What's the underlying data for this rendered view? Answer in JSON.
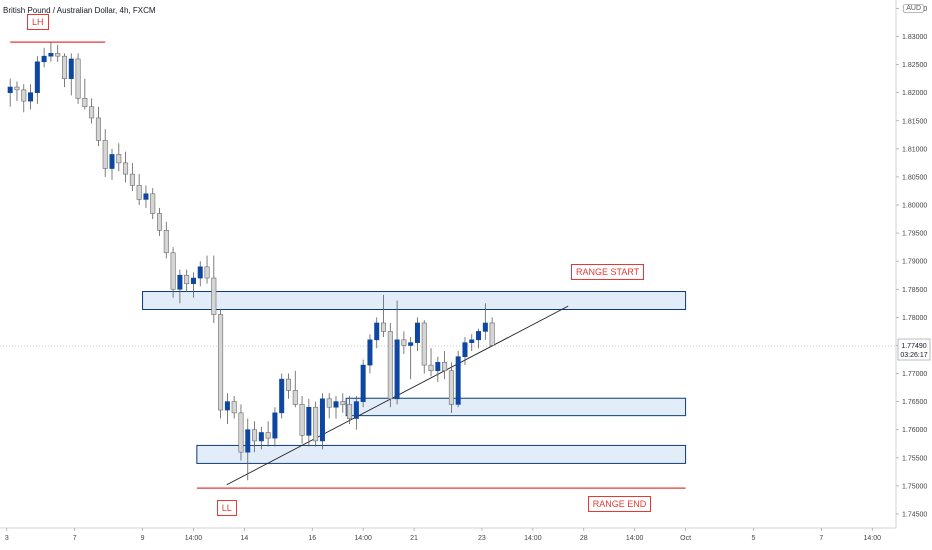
{
  "header": {
    "title": "British Pound / Australian Dollar, 4h, FXCM",
    "currency": "AUD"
  },
  "colors": {
    "bull": "#0d47a1",
    "bear": "#d5d5d5",
    "wick": "#5d5d5d",
    "zone_fill": "#e3edf9",
    "zone_border": "#0d3b76",
    "annotation": "#e53935",
    "trendline": "#222222",
    "price_badge": "#ffffff",
    "axis_text": "#444444"
  },
  "chart_data": {
    "type": "candlestick",
    "symbol": "GBPAUD",
    "timeframe": "4h",
    "ylim": [
      1.7425,
      1.8365
    ],
    "xlim": [
      0,
      132
    ],
    "y_ticks": [
      "1.83500",
      "1.83000",
      "1.82500",
      "1.82000",
      "1.81500",
      "1.81000",
      "1.80500",
      "1.80000",
      "1.79500",
      "1.79000",
      "1.78500",
      "1.78000",
      "1.77500",
      "1.77000",
      "1.76500",
      "1.76000",
      "1.75500",
      "1.75000",
      "1.74500"
    ],
    "x_ticks": [
      {
        "label": "3",
        "x": 1
      },
      {
        "label": "7",
        "x": 11
      },
      {
        "label": "9",
        "x": 21
      },
      {
        "label": "14:00",
        "x": 28.5
      },
      {
        "label": "14",
        "x": 36
      },
      {
        "label": "16",
        "x": 46
      },
      {
        "label": "14:00",
        "x": 53.5
      },
      {
        "label": "21",
        "x": 61
      },
      {
        "label": "23",
        "x": 71
      },
      {
        "label": "14:00",
        "x": 78.5
      },
      {
        "label": "28",
        "x": 86
      },
      {
        "label": "14:00",
        "x": 93.5
      },
      {
        "label": "Oct",
        "x": 101
      },
      {
        "label": "5",
        "x": 111
      },
      {
        "label": "7",
        "x": 121
      },
      {
        "label": "14:00",
        "x": 128.5
      }
    ],
    "last_price": {
      "value": 1.7749,
      "label": "1.77490",
      "countdown": "03:26:17"
    },
    "candles": [
      {
        "o": 1.82,
        "h": 1.8225,
        "l": 1.8175,
        "c": 1.821
      },
      {
        "o": 1.821,
        "h": 1.822,
        "l": 1.8185,
        "c": 1.8205
      },
      {
        "o": 1.8205,
        "h": 1.8215,
        "l": 1.8165,
        "c": 1.8185
      },
      {
        "o": 1.8185,
        "h": 1.8215,
        "l": 1.817,
        "c": 1.82
      },
      {
        "o": 1.82,
        "h": 1.8265,
        "l": 1.818,
        "c": 1.8255
      },
      {
        "o": 1.8255,
        "h": 1.828,
        "l": 1.8245,
        "c": 1.8265
      },
      {
        "o": 1.8265,
        "h": 1.829,
        "l": 1.8255,
        "c": 1.827
      },
      {
        "o": 1.827,
        "h": 1.8285,
        "l": 1.8255,
        "c": 1.8265
      },
      {
        "o": 1.8265,
        "h": 1.827,
        "l": 1.821,
        "c": 1.8225
      },
      {
        "o": 1.8225,
        "h": 1.827,
        "l": 1.8195,
        "c": 1.826
      },
      {
        "o": 1.826,
        "h": 1.827,
        "l": 1.818,
        "c": 1.819
      },
      {
        "o": 1.819,
        "h": 1.8225,
        "l": 1.817,
        "c": 1.8175
      },
      {
        "o": 1.8175,
        "h": 1.819,
        "l": 1.8145,
        "c": 1.8155
      },
      {
        "o": 1.8155,
        "h": 1.8175,
        "l": 1.8105,
        "c": 1.8115
      },
      {
        "o": 1.8115,
        "h": 1.8135,
        "l": 1.805,
        "c": 1.8065
      },
      {
        "o": 1.8065,
        "h": 1.81,
        "l": 1.8045,
        "c": 1.809
      },
      {
        "o": 1.809,
        "h": 1.811,
        "l": 1.806,
        "c": 1.8075
      },
      {
        "o": 1.8075,
        "h": 1.8095,
        "l": 1.804,
        "c": 1.8055
      },
      {
        "o": 1.8055,
        "h": 1.8075,
        "l": 1.8025,
        "c": 1.8035
      },
      {
        "o": 1.8035,
        "h": 1.8055,
        "l": 1.8,
        "c": 1.801
      },
      {
        "o": 1.801,
        "h": 1.8035,
        "l": 1.7995,
        "c": 1.802
      },
      {
        "o": 1.802,
        "h": 1.803,
        "l": 1.7975,
        "c": 1.7985
      },
      {
        "o": 1.7985,
        "h": 1.7995,
        "l": 1.7945,
        "c": 1.7955
      },
      {
        "o": 1.7955,
        "h": 1.797,
        "l": 1.7905,
        "c": 1.7915
      },
      {
        "o": 1.7915,
        "h": 1.7925,
        "l": 1.7835,
        "c": 1.785
      },
      {
        "o": 1.785,
        "h": 1.7885,
        "l": 1.7825,
        "c": 1.7875
      },
      {
        "o": 1.7875,
        "h": 1.7885,
        "l": 1.7845,
        "c": 1.786
      },
      {
        "o": 1.786,
        "h": 1.788,
        "l": 1.7835,
        "c": 1.787
      },
      {
        "o": 1.787,
        "h": 1.79,
        "l": 1.7855,
        "c": 1.789
      },
      {
        "o": 1.789,
        "h": 1.791,
        "l": 1.786,
        "c": 1.787
      },
      {
        "o": 1.787,
        "h": 1.791,
        "l": 1.779,
        "c": 1.7805
      },
      {
        "o": 1.7805,
        "h": 1.7815,
        "l": 1.762,
        "c": 1.7635
      },
      {
        "o": 1.7635,
        "h": 1.7665,
        "l": 1.761,
        "c": 1.765
      },
      {
        "o": 1.765,
        "h": 1.766,
        "l": 1.762,
        "c": 1.763
      },
      {
        "o": 1.763,
        "h": 1.7645,
        "l": 1.7545,
        "c": 1.756
      },
      {
        "o": 1.756,
        "h": 1.762,
        "l": 1.751,
        "c": 1.76
      },
      {
        "o": 1.76,
        "h": 1.7615,
        "l": 1.756,
        "c": 1.758
      },
      {
        "o": 1.758,
        "h": 1.7605,
        "l": 1.7565,
        "c": 1.7595
      },
      {
        "o": 1.7595,
        "h": 1.7615,
        "l": 1.757,
        "c": 1.7585
      },
      {
        "o": 1.7585,
        "h": 1.764,
        "l": 1.757,
        "c": 1.763
      },
      {
        "o": 1.763,
        "h": 1.77,
        "l": 1.762,
        "c": 1.769
      },
      {
        "o": 1.769,
        "h": 1.77,
        "l": 1.7655,
        "c": 1.767
      },
      {
        "o": 1.767,
        "h": 1.7705,
        "l": 1.764,
        "c": 1.7645
      },
      {
        "o": 1.7645,
        "h": 1.766,
        "l": 1.7575,
        "c": 1.759
      },
      {
        "o": 1.759,
        "h": 1.7655,
        "l": 1.757,
        "c": 1.764
      },
      {
        "o": 1.764,
        "h": 1.765,
        "l": 1.757,
        "c": 1.758
      },
      {
        "o": 1.758,
        "h": 1.7665,
        "l": 1.7565,
        "c": 1.7655
      },
      {
        "o": 1.7655,
        "h": 1.7665,
        "l": 1.762,
        "c": 1.764
      },
      {
        "o": 1.764,
        "h": 1.766,
        "l": 1.762,
        "c": 1.765
      },
      {
        "o": 1.765,
        "h": 1.7665,
        "l": 1.763,
        "c": 1.7645
      },
      {
        "o": 1.7645,
        "h": 1.766,
        "l": 1.761,
        "c": 1.762
      },
      {
        "o": 1.762,
        "h": 1.766,
        "l": 1.76,
        "c": 1.765
      },
      {
        "o": 1.765,
        "h": 1.7725,
        "l": 1.764,
        "c": 1.7715
      },
      {
        "o": 1.7715,
        "h": 1.777,
        "l": 1.77,
        "c": 1.776
      },
      {
        "o": 1.776,
        "h": 1.78,
        "l": 1.7745,
        "c": 1.779
      },
      {
        "o": 1.779,
        "h": 1.784,
        "l": 1.7765,
        "c": 1.7775
      },
      {
        "o": 1.7775,
        "h": 1.779,
        "l": 1.764,
        "c": 1.7655
      },
      {
        "o": 1.7655,
        "h": 1.783,
        "l": 1.7645,
        "c": 1.776
      },
      {
        "o": 1.776,
        "h": 1.7775,
        "l": 1.7735,
        "c": 1.775
      },
      {
        "o": 1.775,
        "h": 1.7765,
        "l": 1.769,
        "c": 1.7755
      },
      {
        "o": 1.7755,
        "h": 1.78,
        "l": 1.774,
        "c": 1.779
      },
      {
        "o": 1.779,
        "h": 1.7795,
        "l": 1.77,
        "c": 1.7715
      },
      {
        "o": 1.7715,
        "h": 1.7745,
        "l": 1.7695,
        "c": 1.7705
      },
      {
        "o": 1.7705,
        "h": 1.773,
        "l": 1.7685,
        "c": 1.772
      },
      {
        "o": 1.772,
        "h": 1.774,
        "l": 1.769,
        "c": 1.7705
      },
      {
        "o": 1.7705,
        "h": 1.772,
        "l": 1.763,
        "c": 1.7645
      },
      {
        "o": 1.7645,
        "h": 1.774,
        "l": 1.764,
        "c": 1.773
      },
      {
        "o": 1.773,
        "h": 1.7765,
        "l": 1.7715,
        "c": 1.7755
      },
      {
        "o": 1.7755,
        "h": 1.777,
        "l": 1.774,
        "c": 1.776
      },
      {
        "o": 1.776,
        "h": 1.778,
        "l": 1.7745,
        "c": 1.7775
      },
      {
        "o": 1.7775,
        "h": 1.7825,
        "l": 1.776,
        "c": 1.779
      },
      {
        "o": 1.779,
        "h": 1.78,
        "l": 1.775,
        "c": 1.775
      }
    ],
    "zones": [
      {
        "name": "range-start-zone",
        "x0": 21,
        "x1": 101,
        "y_top": 1.7846,
        "y_bottom": 1.7814
      },
      {
        "name": "mid-support-zone",
        "x0": 51,
        "x1": 101,
        "y_top": 1.7656,
        "y_bottom": 1.7625
      },
      {
        "name": "low-support-zone",
        "x0": 29,
        "x1": 101,
        "y_top": 1.7572,
        "y_bottom": 1.754
      }
    ],
    "lines": [
      {
        "name": "lower-high-line",
        "x0": 1.5,
        "x1": 15.5,
        "y0": 1.829,
        "y1": 1.829
      },
      {
        "name": "lower-low-line",
        "x0": 29,
        "x1": 101,
        "y0": 1.7496,
        "y1": 1.7496
      },
      {
        "name": "ascending-trendline",
        "x0": 33.4,
        "x1": 83.7,
        "y0": 1.7502,
        "y1": 1.782
      }
    ],
    "annotations": [
      {
        "name": "lh-label",
        "text": "LH",
        "x": 5.6,
        "y": 1.8325
      },
      {
        "name": "ll-label",
        "text": "LL",
        "x": 33.4,
        "y": 1.7461
      },
      {
        "name": "range-start-label",
        "text": "RANGE START",
        "x": 89.5,
        "y": 1.788
      },
      {
        "name": "range-end-label",
        "text": "RANGE END",
        "x": 91.3,
        "y": 1.7468
      }
    ]
  }
}
